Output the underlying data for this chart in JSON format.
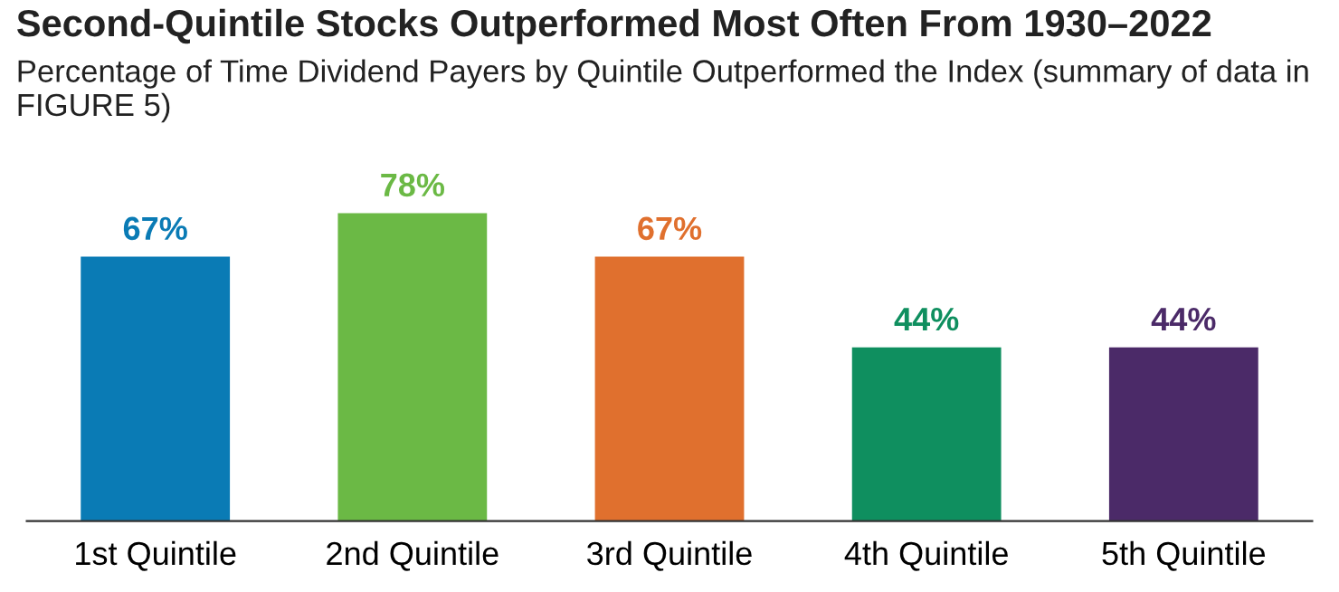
{
  "chart_data": {
    "type": "bar",
    "title": "Second-Quintile Stocks Outperformed Most Often From 1930–2022",
    "subtitle": "Percentage of Time Dividend Payers by Quintile Outperformed the Index (summary of data in FIGURE 5)",
    "categories": [
      "1st Quintile",
      "2nd Quintile",
      "3rd Quintile",
      "4th Quintile",
      "5th Quintile"
    ],
    "values": [
      67,
      78,
      67,
      44,
      44
    ],
    "colors": [
      "#0a7bb5",
      "#6bb945",
      "#e0702e",
      "#0f8f5f",
      "#4b2a68"
    ],
    "data_labels": true,
    "value_labels": [
      "67%",
      "78%",
      "67%",
      "44%",
      "44%"
    ],
    "grid": false,
    "legend": false
  }
}
